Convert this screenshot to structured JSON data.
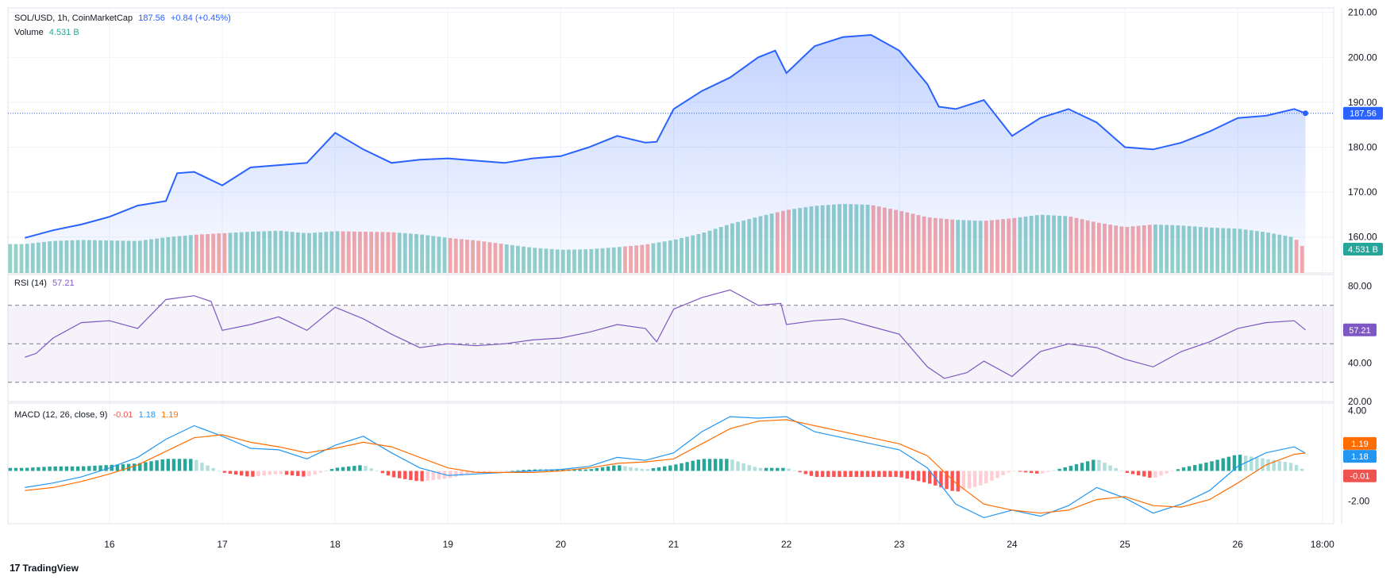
{
  "legend": {
    "symbol": "SOL/USD, 1h, CoinMarketCap",
    "price": "187.56",
    "change": "+0.84 (+0.45%)",
    "volume_label": "Volume",
    "volume_value": "4.531 B",
    "rsi_label": "RSI (14)",
    "rsi_value": "57.21",
    "macd_label": "MACD (12, 26, close, 9)",
    "macd_hist": "-0.01",
    "macd_line": "1.18",
    "macd_signal": "1.19"
  },
  "branding": {
    "logo_text": "TradingView",
    "logo_mark": "17"
  },
  "colors": {
    "price_line": "#2962ff",
    "up": "#26a69a",
    "down": "#ef5350",
    "rsi_line": "#7e57c2",
    "macd_line": "#2196f3",
    "signal_line": "#ff6d00"
  },
  "chart_data": [
    {
      "type": "line",
      "name": "price",
      "title": "SOL/USD, 1h, CoinMarketCap",
      "x_ticks": [
        "16",
        "17",
        "18",
        "19",
        "20",
        "21",
        "22",
        "23",
        "24",
        "25",
        "26",
        "18:00"
      ],
      "y_ticks": [
        "160.00",
        "170.00",
        "180.00",
        "190.00",
        "200.00",
        "210.00"
      ],
      "ylim": [
        152,
        211
      ],
      "last_price_label": "187.56",
      "volume_label": "4.531 B",
      "x_days": [
        15.25,
        15.5,
        15.75,
        16.0,
        16.25,
        16.5,
        16.6,
        16.75,
        17.0,
        17.25,
        17.5,
        17.75,
        18.0,
        18.25,
        18.5,
        18.75,
        19.0,
        19.25,
        19.5,
        19.75,
        20.0,
        20.25,
        20.5,
        20.75,
        20.85,
        21.0,
        21.25,
        21.5,
        21.75,
        21.9,
        22.0,
        22.25,
        22.5,
        22.75,
        23.0,
        23.25,
        23.35,
        23.5,
        23.75,
        24.0,
        24.25,
        24.5,
        24.75,
        25.0,
        25.25,
        25.5,
        25.75,
        26.0,
        26.25,
        26.5,
        26.6
      ],
      "values": [
        159.8,
        161.5,
        162.8,
        164.5,
        167.0,
        168.0,
        174.2,
        174.5,
        171.5,
        175.5,
        176.0,
        176.5,
        183.2,
        179.5,
        176.5,
        177.2,
        177.5,
        177.0,
        176.5,
        177.5,
        178.0,
        180.0,
        182.5,
        181.0,
        181.2,
        188.5,
        192.5,
        195.5,
        200.0,
        201.5,
        196.5,
        202.5,
        204.5,
        205.0,
        201.5,
        194.0,
        189.0,
        188.5,
        190.5,
        182.5,
        186.5,
        188.5,
        185.5,
        180.0,
        179.5,
        181.0,
        183.5,
        186.5,
        187.0,
        188.5,
        187.56
      ]
    },
    {
      "type": "bar",
      "name": "volume",
      "x_days": [
        15.25,
        15.5,
        15.75,
        16.0,
        16.25,
        16.5,
        16.75,
        17.0,
        17.25,
        17.5,
        17.75,
        18.0,
        18.25,
        18.5,
        18.75,
        19.0,
        19.25,
        19.5,
        19.75,
        20.0,
        20.25,
        20.5,
        20.75,
        21.0,
        21.25,
        21.5,
        21.75,
        22.0,
        22.25,
        22.5,
        22.75,
        23.0,
        23.25,
        23.5,
        23.75,
        24.0,
        24.25,
        24.5,
        24.75,
        25.0,
        25.25,
        25.5,
        25.75,
        26.0,
        26.25,
        26.5,
        26.6
      ],
      "values_B": [
        5.6,
        6.2,
        6.4,
        6.3,
        6.2,
        6.9,
        7.4,
        7.7,
        8.0,
        8.2,
        7.7,
        8.1,
        8.0,
        7.9,
        7.5,
        6.8,
        6.3,
        5.6,
        4.9,
        4.5,
        4.6,
        5.0,
        5.5,
        6.4,
        7.7,
        9.5,
        10.9,
        12.2,
        13.0,
        13.4,
        13.2,
        12.1,
        10.8,
        10.3,
        10.1,
        10.6,
        11.3,
        11.0,
        9.8,
        8.9,
        9.4,
        9.2,
        8.8,
        8.6,
        7.9,
        6.9,
        4.531
      ]
    },
    {
      "type": "line",
      "name": "RSI (14)",
      "y_ticks": [
        "20.00",
        "40.00",
        "80.00"
      ],
      "ylim": [
        20,
        86
      ],
      "bands": [
        70,
        50,
        30
      ],
      "last_value_label": "57.21",
      "x_days": [
        15.25,
        15.35,
        15.5,
        15.75,
        16.0,
        16.25,
        16.5,
        16.75,
        16.9,
        17.0,
        17.25,
        17.5,
        17.75,
        18.0,
        18.25,
        18.5,
        18.75,
        19.0,
        19.25,
        19.5,
        19.75,
        20.0,
        20.25,
        20.5,
        20.75,
        20.85,
        21.0,
        21.25,
        21.5,
        21.75,
        21.95,
        22.0,
        22.25,
        22.5,
        22.75,
        23.0,
        23.25,
        23.4,
        23.6,
        23.75,
        24.0,
        24.25,
        24.5,
        24.75,
        25.0,
        25.25,
        25.5,
        25.75,
        26.0,
        26.25,
        26.5,
        26.6
      ],
      "values": [
        43,
        45,
        53,
        61,
        62,
        58,
        73,
        75,
        72,
        57,
        60,
        64,
        57,
        69,
        63,
        55,
        48,
        50,
        49,
        50,
        52,
        53,
        56,
        60,
        58,
        51,
        68,
        74,
        78,
        70,
        71,
        60,
        62,
        63,
        59,
        55,
        38,
        32,
        35,
        41,
        33,
        46,
        50,
        48,
        42,
        38,
        46,
        51,
        58,
        61,
        62,
        57.21
      ]
    },
    {
      "type": "line",
      "name": "MACD (12, 26, close, 9)",
      "y_ticks": [
        "-2.00",
        "4.00"
      ],
      "ylim": [
        -3.5,
        4.5
      ],
      "labels": {
        "histogram": "-0.01",
        "macd": "1.18",
        "signal": "1.19"
      },
      "x_days": [
        15.25,
        15.5,
        15.75,
        16.0,
        16.25,
        16.5,
        16.75,
        17.0,
        17.25,
        17.5,
        17.75,
        18.0,
        18.25,
        18.5,
        18.75,
        19.0,
        19.25,
        19.5,
        19.75,
        20.0,
        20.25,
        20.5,
        20.75,
        21.0,
        21.25,
        21.5,
        21.75,
        22.0,
        22.25,
        22.5,
        22.75,
        23.0,
        23.25,
        23.5,
        23.75,
        24.0,
        24.25,
        24.5,
        24.75,
        25.0,
        25.25,
        25.5,
        25.75,
        26.0,
        26.25,
        26.5,
        26.6
      ],
      "series": [
        {
          "name": "macd",
          "values": [
            -1.1,
            -0.8,
            -0.4,
            0.2,
            0.9,
            2.1,
            3.0,
            2.3,
            1.5,
            1.4,
            0.8,
            1.7,
            2.3,
            1.2,
            0.2,
            -0.3,
            -0.2,
            -0.1,
            0.0,
            0.1,
            0.3,
            0.9,
            0.7,
            1.2,
            2.6,
            3.6,
            3.5,
            3.6,
            2.6,
            2.2,
            1.8,
            1.4,
            0.2,
            -2.2,
            -3.1,
            -2.6,
            -3.0,
            -2.3,
            -1.1,
            -1.8,
            -2.8,
            -2.2,
            -1.3,
            0.3,
            1.2,
            1.6,
            1.18
          ]
        },
        {
          "name": "signal",
          "values": [
            -1.3,
            -1.1,
            -0.7,
            -0.2,
            0.4,
            1.3,
            2.2,
            2.4,
            1.9,
            1.6,
            1.2,
            1.5,
            1.9,
            1.6,
            0.9,
            0.2,
            -0.1,
            -0.1,
            -0.1,
            0.0,
            0.2,
            0.5,
            0.6,
            0.8,
            1.8,
            2.8,
            3.3,
            3.4,
            3.0,
            2.6,
            2.2,
            1.8,
            1.0,
            -0.8,
            -2.2,
            -2.6,
            -2.8,
            -2.6,
            -1.9,
            -1.7,
            -2.3,
            -2.4,
            -1.9,
            -0.8,
            0.4,
            1.1,
            1.19
          ]
        },
        {
          "name": "histogram",
          "values": [
            0.2,
            0.3,
            0.3,
            0.4,
            0.5,
            0.8,
            0.8,
            -0.1,
            -0.4,
            -0.2,
            -0.4,
            0.2,
            0.4,
            -0.4,
            -0.7,
            -0.5,
            -0.1,
            0.0,
            0.1,
            0.1,
            0.1,
            0.4,
            0.1,
            0.4,
            0.8,
            0.8,
            0.2,
            0.2,
            -0.4,
            -0.4,
            -0.4,
            -0.4,
            -0.8,
            -1.4,
            -0.9,
            0.0,
            -0.2,
            0.3,
            0.8,
            -0.1,
            -0.5,
            0.2,
            0.6,
            1.1,
            0.8,
            0.5,
            -0.01
          ]
        }
      ]
    }
  ]
}
